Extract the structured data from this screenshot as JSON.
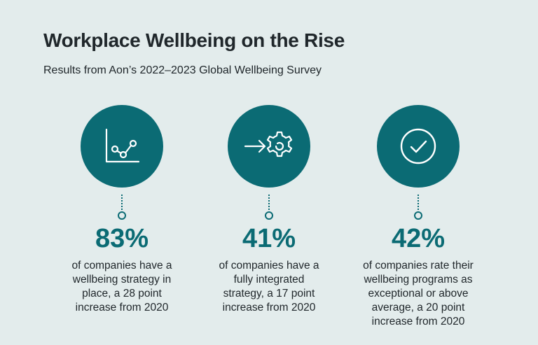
{
  "title": "Workplace Wellbeing on the Rise",
  "subtitle": "Results from Aon’s 2022–2023 Global Wellbeing Survey",
  "colors": {
    "background": "#e3ecec",
    "accent": "#0b6b74",
    "text": "#20272b"
  },
  "stats": [
    {
      "icon": "line-chart-icon",
      "value": "83%",
      "lines": [
        "of companies have a",
        "wellbeing strategy in",
        "place, a 28 point",
        "increase from 2020"
      ]
    },
    {
      "icon": "arrow-gear-icon",
      "value": "41%",
      "lines": [
        "of companies have a",
        "fully integrated",
        "strategy, a 17 point",
        "increase from 2020"
      ]
    },
    {
      "icon": "checkmark-circle-icon",
      "value": "42%",
      "lines": [
        "of companies rate their",
        "wellbeing programs as",
        "exceptional or above",
        "average, a 20 point",
        "increase from 2020"
      ]
    }
  ]
}
